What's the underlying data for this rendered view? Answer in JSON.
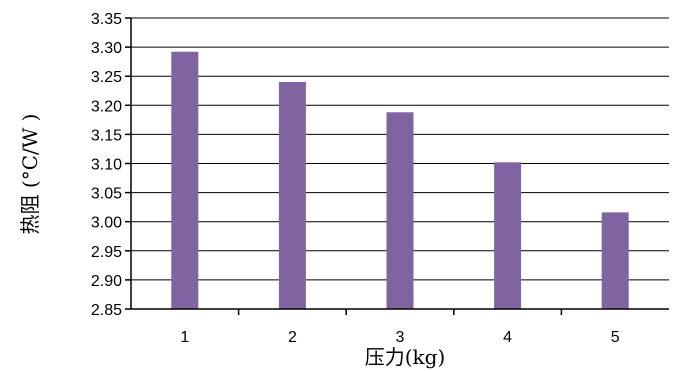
{
  "chart_data": {
    "type": "bar",
    "title": "",
    "xlabel": "压力(kg)",
    "ylabel": "热阻 (°C/W )",
    "categories": [
      "1",
      "2",
      "3",
      "4",
      "5"
    ],
    "series": [
      {
        "values": [
          3.292,
          3.24,
          3.188,
          3.102,
          3.016
        ]
      }
    ],
    "ylim": [
      2.85,
      3.35
    ],
    "yticks": [
      "2.85",
      "2.90",
      "2.95",
      "3.00",
      "3.05",
      "3.10",
      "3.15",
      "3.20",
      "3.25",
      "3.30",
      "3.35"
    ],
    "grid": true,
    "legend": "none",
    "bar_color": "#8064a2"
  }
}
